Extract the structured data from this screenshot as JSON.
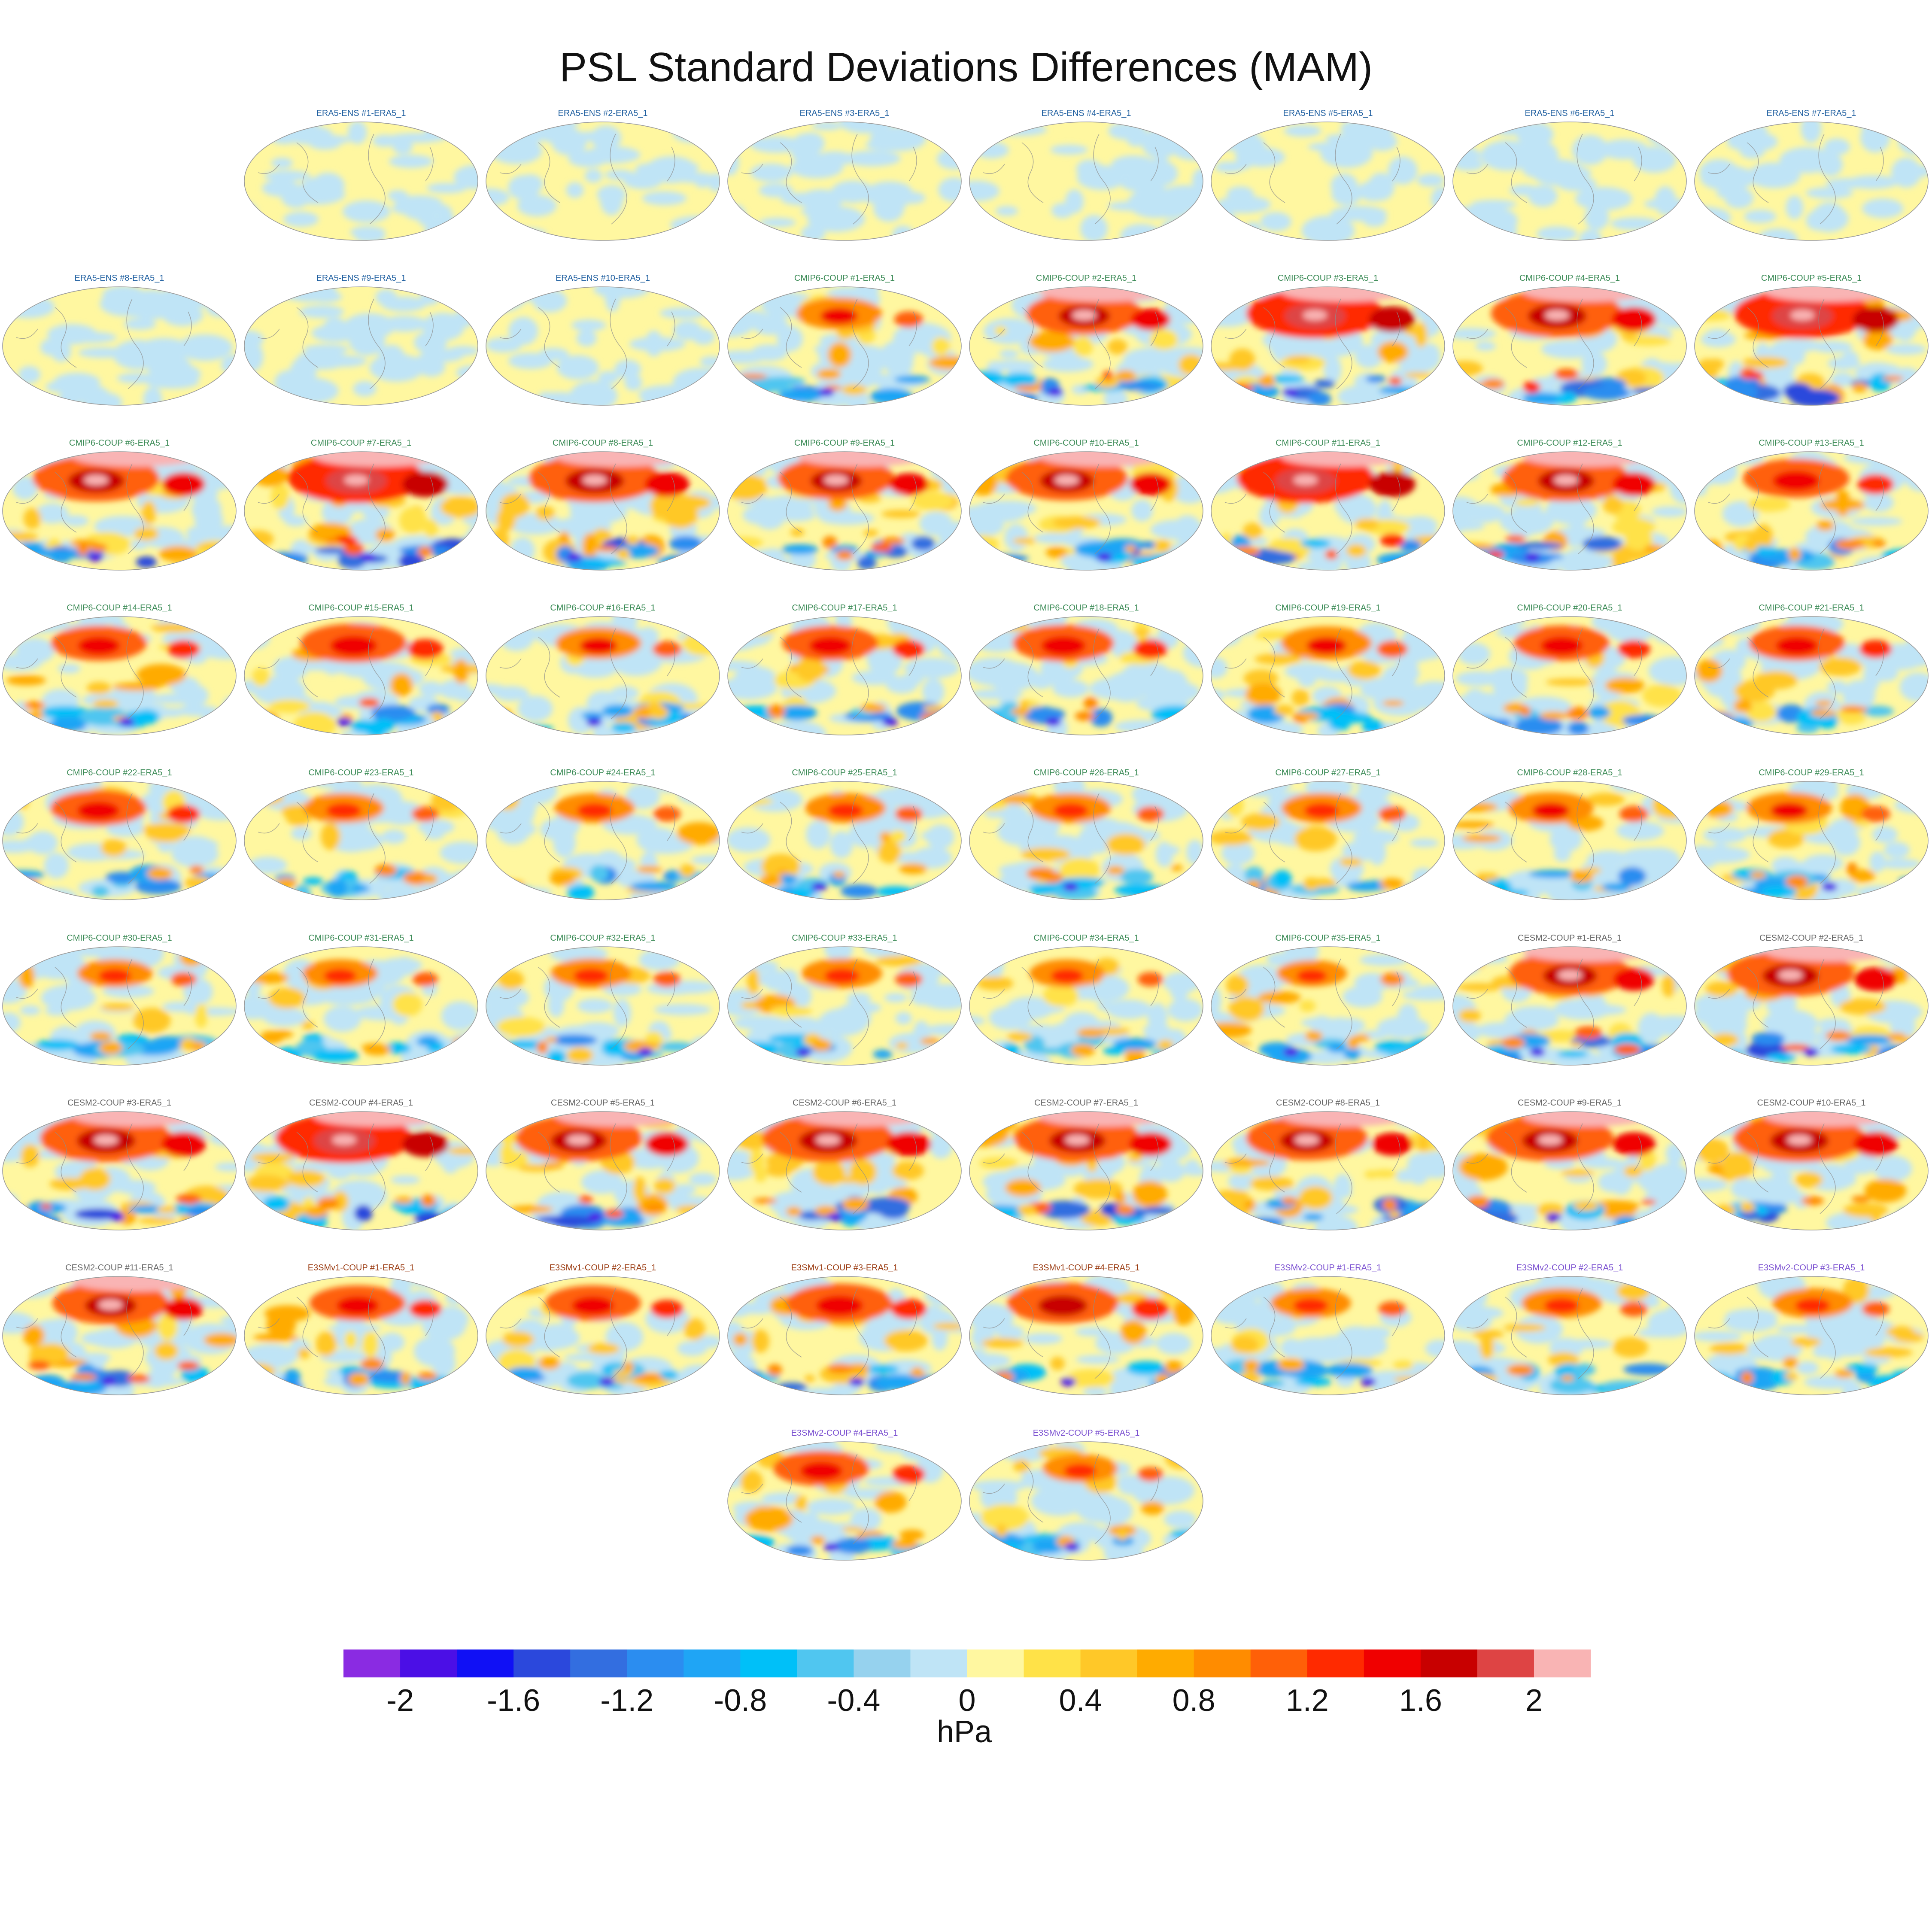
{
  "title": "PSL Standard Deviations Differences (MAM)",
  "palette": {
    "title_colors": {
      "ERA5-ENS": "#1f5fa0",
      "CMIP6-COUP": "#3a8a55",
      "CESM2-COUP": "#666666",
      "E3SMv1-COUP": "#9a3a10",
      "E3SMv2-COUP": "#7a4fd0"
    }
  },
  "chart_data": {
    "type": "heatmap",
    "title": "PSL Standard Deviations Differences (MAM)",
    "panels": [
      {
        "label": "ERA5-ENS   #1-ERA5_1",
        "group": "ERA5-ENS",
        "intensity": 0.05
      },
      {
        "label": "ERA5-ENS   #2-ERA5_1",
        "group": "ERA5-ENS",
        "intensity": 0.05
      },
      {
        "label": "ERA5-ENS   #3-ERA5_1",
        "group": "ERA5-ENS",
        "intensity": 0.05
      },
      {
        "label": "ERA5-ENS   #4-ERA5_1",
        "group": "ERA5-ENS",
        "intensity": 0.05
      },
      {
        "label": "ERA5-ENS   #5-ERA5_1",
        "group": "ERA5-ENS",
        "intensity": 0.05
      },
      {
        "label": "ERA5-ENS   #6-ERA5_1",
        "group": "ERA5-ENS",
        "intensity": 0.05
      },
      {
        "label": "ERA5-ENS   #7-ERA5_1",
        "group": "ERA5-ENS",
        "intensity": 0.05
      },
      {
        "label": "ERA5-ENS   #8-ERA5_1",
        "group": "ERA5-ENS",
        "intensity": 0.05
      },
      {
        "label": "ERA5-ENS   #9-ERA5_1",
        "group": "ERA5-ENS",
        "intensity": 0.05
      },
      {
        "label": "ERA5-ENS   #10-ERA5_1",
        "group": "ERA5-ENS",
        "intensity": 0.05
      },
      {
        "label": "CMIP6-COUP  #1-ERA5_1",
        "group": "CMIP6-COUP",
        "intensity": 0.5
      },
      {
        "label": "CMIP6-COUP  #2-ERA5_1",
        "group": "CMIP6-COUP",
        "intensity": 0.8
      },
      {
        "label": "CMIP6-COUP  #3-ERA5_1",
        "group": "CMIP6-COUP",
        "intensity": 1.0
      },
      {
        "label": "CMIP6-COUP  #4-ERA5_1",
        "group": "CMIP6-COUP",
        "intensity": 0.95
      },
      {
        "label": "CMIP6-COUP  #5-ERA5_1",
        "group": "CMIP6-COUP",
        "intensity": 1.0
      },
      {
        "label": "CMIP6-COUP  #6-ERA5_1",
        "group": "CMIP6-COUP",
        "intensity": 0.9
      },
      {
        "label": "CMIP6-COUP  #7-ERA5_1",
        "group": "CMIP6-COUP",
        "intensity": 1.0
      },
      {
        "label": "CMIP6-COUP  #8-ERA5_1",
        "group": "CMIP6-COUP",
        "intensity": 0.95
      },
      {
        "label": "CMIP6-COUP  #9-ERA5_1",
        "group": "CMIP6-COUP",
        "intensity": 0.8
      },
      {
        "label": "CMIP6-COUP  #10-ERA5_1",
        "group": "CMIP6-COUP",
        "intensity": 0.85
      },
      {
        "label": "CMIP6-COUP  #11-ERA5_1",
        "group": "CMIP6-COUP",
        "intensity": 1.0
      },
      {
        "label": "CMIP6-COUP  #12-ERA5_1",
        "group": "CMIP6-COUP",
        "intensity": 0.9
      },
      {
        "label": "CMIP6-COUP  #13-ERA5_1",
        "group": "CMIP6-COUP",
        "intensity": 0.7
      },
      {
        "label": "CMIP6-COUP  #14-ERA5_1",
        "group": "CMIP6-COUP",
        "intensity": 0.6
      },
      {
        "label": "CMIP6-COUP  #15-ERA5_1",
        "group": "CMIP6-COUP",
        "intensity": 0.7
      },
      {
        "label": "CMIP6-COUP  #16-ERA5_1",
        "group": "CMIP6-COUP",
        "intensity": 0.5
      },
      {
        "label": "CMIP6-COUP  #17-ERA5_1",
        "group": "CMIP6-COUP",
        "intensity": 0.6
      },
      {
        "label": "CMIP6-COUP  #18-ERA5_1",
        "group": "CMIP6-COUP",
        "intensity": 0.65
      },
      {
        "label": "CMIP6-COUP  #19-ERA5_1",
        "group": "CMIP6-COUP",
        "intensity": 0.55
      },
      {
        "label": "CMIP6-COUP  #20-ERA5_1",
        "group": "CMIP6-COUP",
        "intensity": 0.6
      },
      {
        "label": "CMIP6-COUP  #21-ERA5_1",
        "group": "CMIP6-COUP",
        "intensity": 0.6
      },
      {
        "label": "CMIP6-COUP  #22-ERA5_1",
        "group": "CMIP6-COUP",
        "intensity": 0.6
      },
      {
        "label": "CMIP6-COUP  #23-ERA5_1",
        "group": "CMIP6-COUP",
        "intensity": 0.45
      },
      {
        "label": "CMIP6-COUP  #24-ERA5_1",
        "group": "CMIP6-COUP",
        "intensity": 0.45
      },
      {
        "label": "CMIP6-COUP  #25-ERA5_1",
        "group": "CMIP6-COUP",
        "intensity": 0.45
      },
      {
        "label": "CMIP6-COUP  #26-ERA5_1",
        "group": "CMIP6-COUP",
        "intensity": 0.45
      },
      {
        "label": "CMIP6-COUP  #27-ERA5_1",
        "group": "CMIP6-COUP",
        "intensity": 0.45
      },
      {
        "label": "CMIP6-COUP  #28-ERA5_1",
        "group": "CMIP6-COUP",
        "intensity": 0.5
      },
      {
        "label": "CMIP6-COUP  #29-ERA5_1",
        "group": "CMIP6-COUP",
        "intensity": 0.5
      },
      {
        "label": "CMIP6-COUP  #30-ERA5_1",
        "group": "CMIP6-COUP",
        "intensity": 0.4
      },
      {
        "label": "CMIP6-COUP  #31-ERA5_1",
        "group": "CMIP6-COUP",
        "intensity": 0.4
      },
      {
        "label": "CMIP6-COUP  #32-ERA5_1",
        "group": "CMIP6-COUP",
        "intensity": 0.45
      },
      {
        "label": "CMIP6-COUP  #33-ERA5_1",
        "group": "CMIP6-COUP",
        "intensity": 0.45
      },
      {
        "label": "CMIP6-COUP  #34-ERA5_1",
        "group": "CMIP6-COUP",
        "intensity": 0.4
      },
      {
        "label": "CMIP6-COUP  #35-ERA5_1",
        "group": "CMIP6-COUP",
        "intensity": 0.35
      },
      {
        "label": "CESM2-COUP  #1-ERA5_1",
        "group": "CESM2-COUP",
        "intensity": 0.85
      },
      {
        "label": "CESM2-COUP  #2-ERA5_1",
        "group": "CESM2-COUP",
        "intensity": 0.9
      },
      {
        "label": "CESM2-COUP  #3-ERA5_1",
        "group": "CESM2-COUP",
        "intensity": 0.95
      },
      {
        "label": "CESM2-COUP  #4-ERA5_1",
        "group": "CESM2-COUP",
        "intensity": 1.0
      },
      {
        "label": "CESM2-COUP  #5-ERA5_1",
        "group": "CESM2-COUP",
        "intensity": 0.9
      },
      {
        "label": "CESM2-COUP  #6-ERA5_1",
        "group": "CESM2-COUP",
        "intensity": 0.95
      },
      {
        "label": "CESM2-COUP  #7-ERA5_1",
        "group": "CESM2-COUP",
        "intensity": 0.9
      },
      {
        "label": "CESM2-COUP  #8-ERA5_1",
        "group": "CESM2-COUP",
        "intensity": 0.85
      },
      {
        "label": "CESM2-COUP  #9-ERA5_1",
        "group": "CESM2-COUP",
        "intensity": 0.9
      },
      {
        "label": "CESM2-COUP  #10-ERA5_1",
        "group": "CESM2-COUP",
        "intensity": 0.95
      },
      {
        "label": "CESM2-COUP  #11-ERA5_1",
        "group": "CESM2-COUP",
        "intensity": 0.8
      },
      {
        "label": "E3SMv1-COUP #1-ERA5_1",
        "group": "E3SMv1-COUP",
        "intensity": 0.6
      },
      {
        "label": "E3SMv1-COUP #2-ERA5_1",
        "group": "E3SMv1-COUP",
        "intensity": 0.6
      },
      {
        "label": "E3SMv1-COUP #3-ERA5_1",
        "group": "E3SMv1-COUP",
        "intensity": 0.7
      },
      {
        "label": "E3SMv1-COUP #4-ERA5_1",
        "group": "E3SMv1-COUP",
        "intensity": 0.75
      },
      {
        "label": "E3SMv2-COUP #1-ERA5_1",
        "group": "E3SMv2-COUP",
        "intensity": 0.45
      },
      {
        "label": "E3SMv2-COUP #2-ERA5_1",
        "group": "E3SMv2-COUP",
        "intensity": 0.45
      },
      {
        "label": "E3SMv2-COUP #3-ERA5_1",
        "group": "E3SMv2-COUP",
        "intensity": 0.45
      },
      {
        "label": "E3SMv2-COUP #4-ERA5_1",
        "group": "E3SMv2-COUP",
        "intensity": 0.6
      },
      {
        "label": "E3SMv2-COUP #5-ERA5_1",
        "group": "E3SMv2-COUP",
        "intensity": 0.4
      }
    ],
    "colorbar": {
      "label": "hPa",
      "range": [
        -2.2,
        2.2
      ],
      "step": 0.2,
      "tick_values": [
        -2,
        -1.6,
        -1.2,
        -0.8,
        -0.4,
        0,
        0.4,
        0.8,
        1.2,
        1.6,
        2
      ],
      "tick_labels": [
        "-2",
        "-1.6",
        "-1.2",
        "-0.8",
        "-0.4",
        "0",
        "0.4",
        "0.8",
        "1.2",
        "1.6",
        "2"
      ],
      "colors": [
        "#8a2be2",
        "#4b0fe6",
        "#1010f5",
        "#2b48dc",
        "#336ee0",
        "#2b8df0",
        "#1fa5f5",
        "#00c0f8",
        "#50c6f0",
        "#96d2ee",
        "#bfe4f6",
        "#fff7a0",
        "#ffe248",
        "#ffc828",
        "#ffab00",
        "#ff8c00",
        "#ff6008",
        "#ff2a00",
        "#f00000",
        "#c80000",
        "#de4444",
        "#f9b4b4"
      ]
    }
  }
}
